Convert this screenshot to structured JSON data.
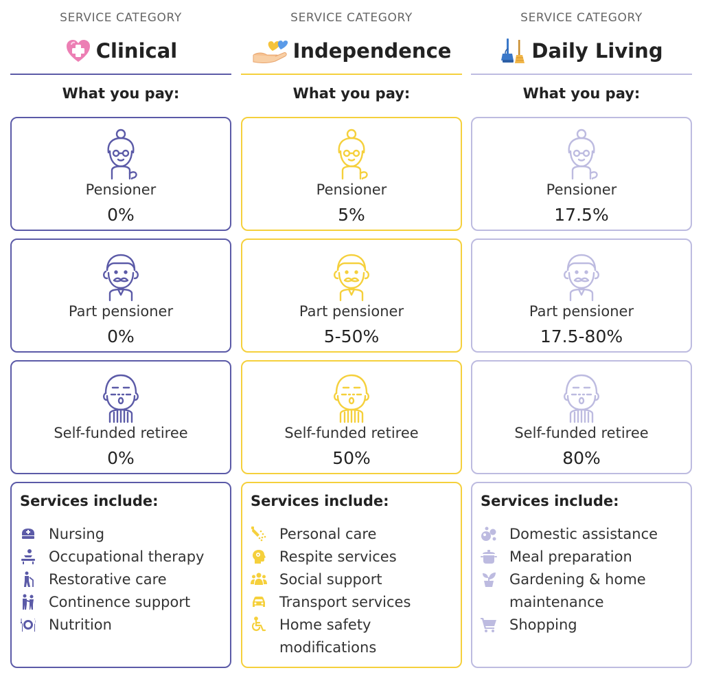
{
  "columns": [
    {
      "category_label": "SERVICE CATEGORY",
      "category_name": "Clinical",
      "category_icon": "heart-medical-icon",
      "accent": "#5b5aa7",
      "pay_label": "What you pay:",
      "tiers": [
        {
          "type": "Pensioner",
          "pct": "0%"
        },
        {
          "type": "Part pensioner",
          "pct": "0%"
        },
        {
          "type": "Self-funded retiree",
          "pct": "0%"
        }
      ],
      "services_title": "Services include:",
      "services": [
        {
          "icon": "nurse-cap-icon",
          "label": "Nursing"
        },
        {
          "icon": "therapy-icon",
          "label": "Occupational therapy"
        },
        {
          "icon": "walking-cane-icon",
          "label": "Restorative care"
        },
        {
          "icon": "assist-person-icon",
          "label": "Continence support"
        },
        {
          "icon": "plate-cutlery-icon",
          "label": "Nutrition"
        }
      ]
    },
    {
      "category_label": "SERVICE CATEGORY",
      "category_name": "Independence",
      "category_icon": "hand-hearts-icon",
      "accent": "#f5d03c",
      "pay_label": "What you pay:",
      "tiers": [
        {
          "type": "Pensioner",
          "pct": "5%"
        },
        {
          "type": "Part pensioner",
          "pct": "5-50%"
        },
        {
          "type": "Self-funded retiree",
          "pct": "50%"
        }
      ],
      "services_title": "Services include:",
      "services": [
        {
          "icon": "shower-icon",
          "label": "Personal care"
        },
        {
          "icon": "head-mind-icon",
          "label": "Respite services"
        },
        {
          "icon": "group-people-icon",
          "label": "Social support"
        },
        {
          "icon": "car-icon",
          "label": "Transport services"
        },
        {
          "icon": "wheelchair-icon",
          "label": "Home safety modifications"
        }
      ]
    },
    {
      "category_label": "SERVICE CATEGORY",
      "category_name": "Daily Living",
      "category_icon": "broom-bucket-icon",
      "accent": "#bdbbe0",
      "pay_label": "What you pay:",
      "tiers": [
        {
          "type": "Pensioner",
          "pct": "17.5%"
        },
        {
          "type": "Part pensioner",
          "pct": "17.5-80%"
        },
        {
          "type": "Self-funded retiree",
          "pct": "80%"
        }
      ],
      "services_title": "Services include:",
      "services": [
        {
          "icon": "bubbles-icon",
          "label": "Domestic assistance"
        },
        {
          "icon": "cooking-pot-icon",
          "label": "Meal preparation"
        },
        {
          "icon": "potted-plant-icon",
          "label": "Gardening & home maintenance"
        },
        {
          "icon": "shopping-cart-icon",
          "label": "Shopping"
        }
      ]
    }
  ]
}
